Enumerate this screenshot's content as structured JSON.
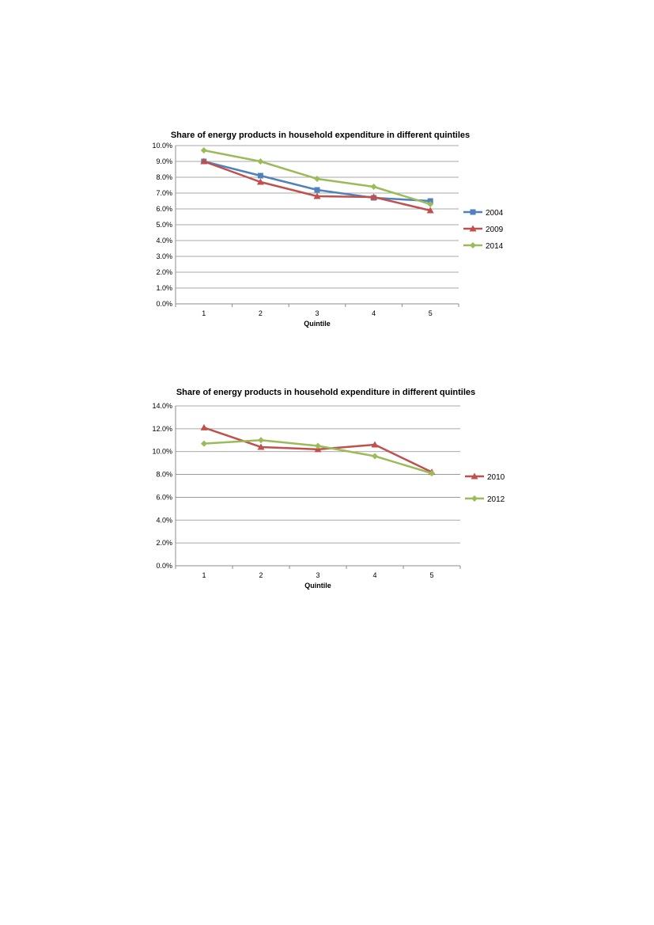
{
  "chart_data": [
    {
      "type": "line",
      "title": "Share of energy products in household expenditure in different quintiles",
      "xlabel": "Quintile",
      "ylabel": "",
      "x": [
        1,
        2,
        3,
        4,
        5
      ],
      "ylim": [
        0,
        10
      ],
      "ytick_step": 1,
      "ytick_labels": [
        "0.0%",
        "1.0%",
        "2.0%",
        "3.0%",
        "4.0%",
        "5.0%",
        "6.0%",
        "7.0%",
        "8.0%",
        "9.0%",
        "10.0%"
      ],
      "grid": true,
      "legend_position": "right",
      "series": [
        {
          "name": "2004",
          "values": [
            9.0,
            8.1,
            7.2,
            6.7,
            6.5
          ],
          "color": "#4F81BD",
          "marker": "square"
        },
        {
          "name": "2009",
          "values": [
            9.0,
            7.7,
            6.8,
            6.75,
            5.9
          ],
          "color": "#C0504D",
          "marker": "triangle"
        },
        {
          "name": "2014",
          "values": [
            9.7,
            9.0,
            7.9,
            7.4,
            6.3
          ],
          "color": "#9BBB59",
          "marker": "diamond"
        }
      ]
    },
    {
      "type": "line",
      "title": "Share of energy products in household expenditure in different quintiles",
      "xlabel": "Quintile",
      "ylabel": "",
      "x": [
        1,
        2,
        3,
        4,
        5
      ],
      "ylim": [
        0,
        14
      ],
      "ytick_step": 2,
      "ytick_labels": [
        "0.0%",
        "2.0%",
        "4.0%",
        "6.0%",
        "8.0%",
        "10.0%",
        "12.0%",
        "14.0%"
      ],
      "grid": true,
      "legend_position": "right",
      "series": [
        {
          "name": "2010",
          "values": [
            12.1,
            10.4,
            10.2,
            10.6,
            8.2
          ],
          "color": "#C0504D",
          "marker": "triangle"
        },
        {
          "name": "2012",
          "values": [
            10.7,
            11.0,
            10.5,
            9.6,
            8.1
          ],
          "color": "#9BBB59",
          "marker": "diamond"
        }
      ]
    }
  ]
}
